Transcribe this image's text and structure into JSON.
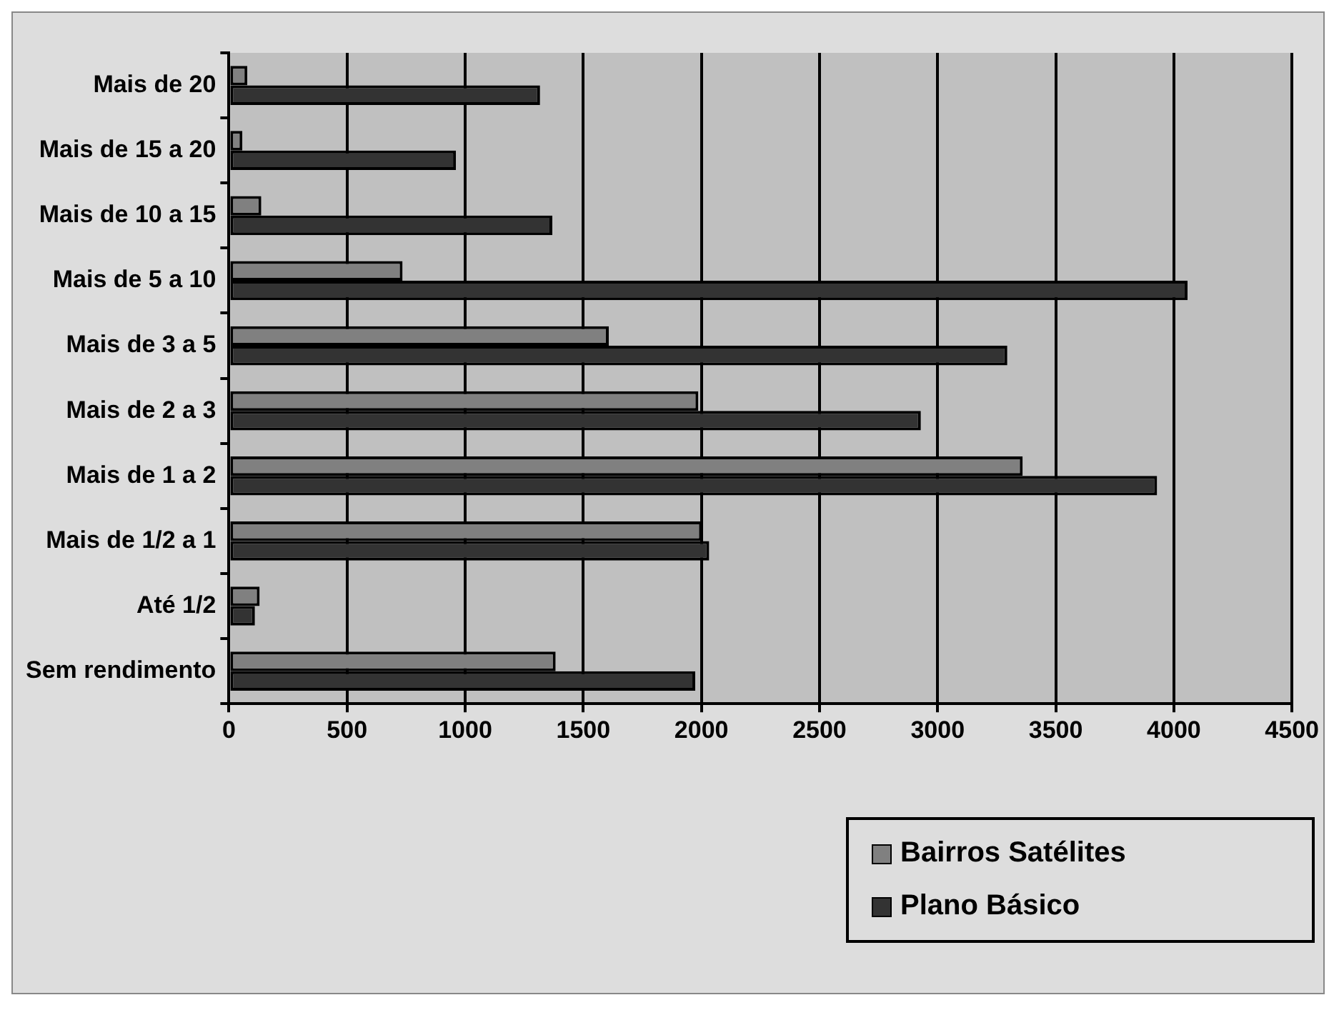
{
  "chart_data": {
    "type": "bar",
    "orientation": "horizontal",
    "categories": [
      "Mais de 20",
      "Mais de 15 a 20",
      "Mais de 10 a 15",
      "Mais de 5 a 10",
      "Mais de 3 a 5",
      "Mais de 2 a 3",
      "Mais de 1 a 2",
      "Mais de 1/2 a 1",
      "Até 1/2",
      "Sem rendimento"
    ],
    "series": [
      {
        "name": "Bairros Satélites",
        "color": "#808080",
        "values": [
          78,
          57,
          137,
          735,
          1608,
          1987,
          3360,
          2002,
          130,
          1383
        ]
      },
      {
        "name": "Plano Básico",
        "color": "#333333",
        "values": [
          1317,
          961,
          1369,
          4058,
          3295,
          2929,
          3929,
          2033,
          110,
          1974
        ]
      }
    ],
    "xlim": [
      0,
      4500
    ],
    "xticks": [
      0,
      500,
      1000,
      1500,
      2000,
      2500,
      3000,
      3500,
      4000,
      4500
    ],
    "grid": "x",
    "legend": "bottom right"
  }
}
